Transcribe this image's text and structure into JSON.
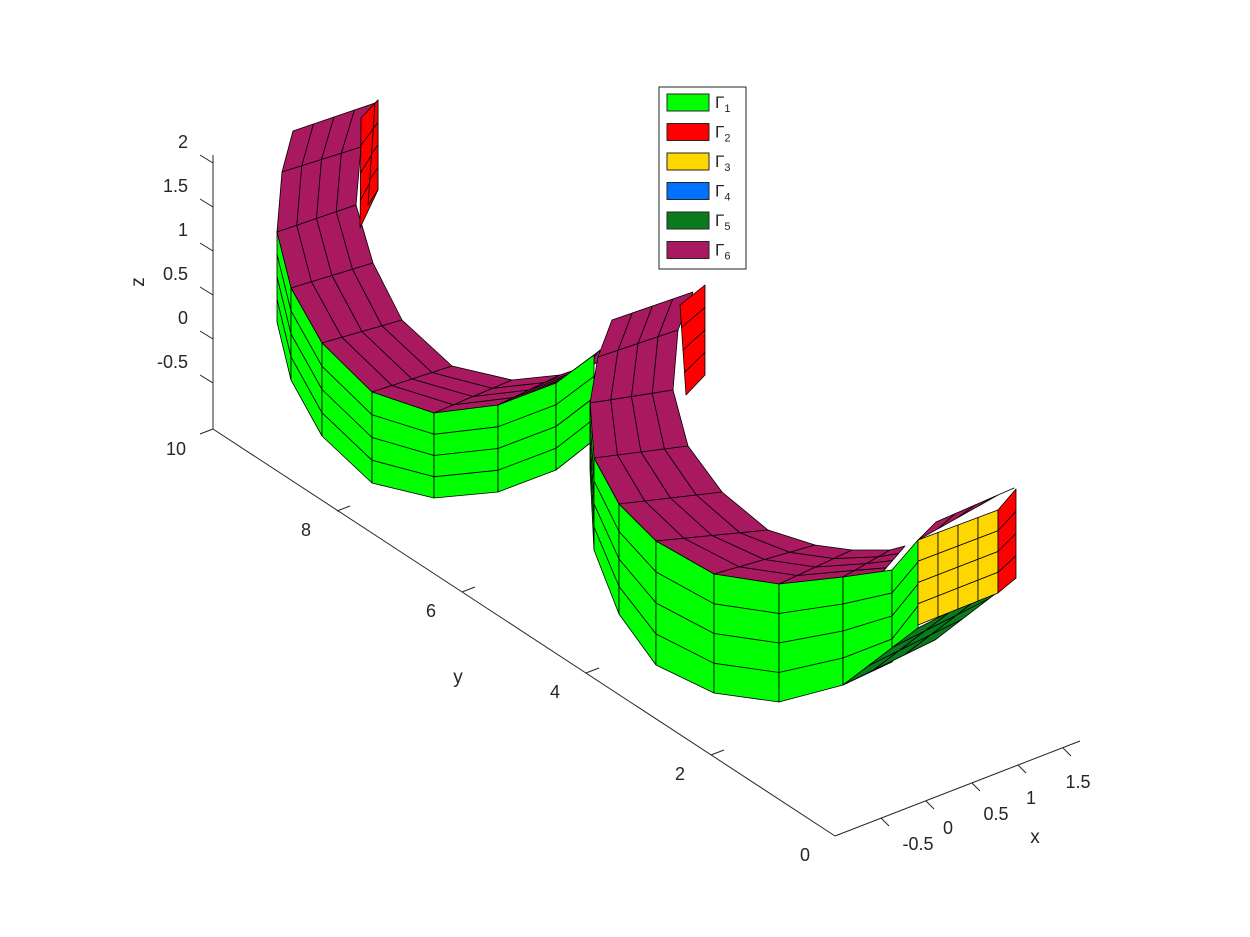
{
  "axes": {
    "xlabel": "x",
    "ylabel": "y",
    "zlabel": "z",
    "x_ticks": [
      "-0.5",
      "0",
      "0.5",
      "1",
      "1.5"
    ],
    "y_ticks": [
      "0",
      "2",
      "4",
      "6",
      "8",
      "10"
    ],
    "z_ticks": [
      "-0.5",
      "0",
      "0.5",
      "1",
      "1.5",
      "2"
    ]
  },
  "legend": [
    {
      "symbol": "Γ",
      "sub": "1",
      "color": "#00ff00"
    },
    {
      "symbol": "Γ",
      "sub": "2",
      "color": "#ff0000"
    },
    {
      "symbol": "Γ",
      "sub": "3",
      "color": "#ffd700"
    },
    {
      "symbol": "Γ",
      "sub": "4",
      "color": "#0072ff"
    },
    {
      "symbol": "Γ",
      "sub": "5",
      "color": "#0b7a1c"
    },
    {
      "symbol": "Γ",
      "sub": "6",
      "color": "#a8195f"
    }
  ]
}
